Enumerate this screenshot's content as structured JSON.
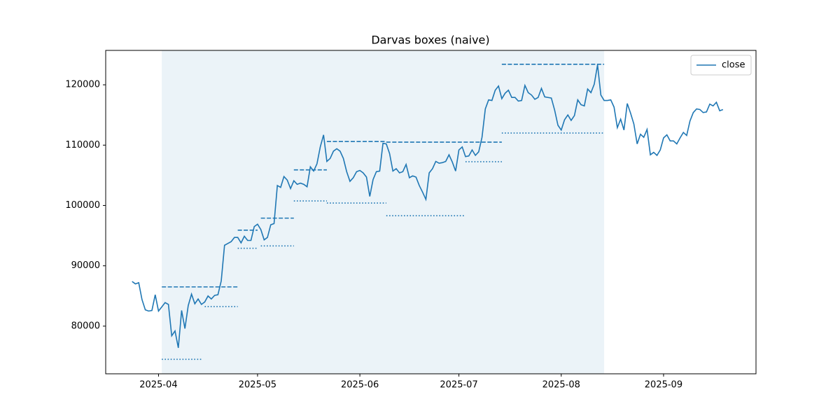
{
  "chart_data": {
    "type": "line",
    "title": "Darvas boxes (naive)",
    "x": [
      "2025-03-24",
      "2025-03-25",
      "2025-03-26",
      "2025-03-27",
      "2025-03-28",
      "2025-03-29",
      "2025-03-30",
      "2025-03-31",
      "2025-04-01",
      "2025-04-02",
      "2025-04-03",
      "2025-04-04",
      "2025-04-05",
      "2025-04-06",
      "2025-04-07",
      "2025-04-08",
      "2025-04-09",
      "2025-04-10",
      "2025-04-11",
      "2025-04-12",
      "2025-04-13",
      "2025-04-14",
      "2025-04-15",
      "2025-04-16",
      "2025-04-17",
      "2025-04-18",
      "2025-04-19",
      "2025-04-20",
      "2025-04-21",
      "2025-04-22",
      "2025-04-23",
      "2025-04-24",
      "2025-04-25",
      "2025-04-26",
      "2025-04-27",
      "2025-04-28",
      "2025-04-29",
      "2025-04-30",
      "2025-05-01",
      "2025-05-02",
      "2025-05-03",
      "2025-05-04",
      "2025-05-05",
      "2025-05-06",
      "2025-05-07",
      "2025-05-08",
      "2025-05-09",
      "2025-05-10",
      "2025-05-11",
      "2025-05-12",
      "2025-05-13",
      "2025-05-14",
      "2025-05-15",
      "2025-05-16",
      "2025-05-17",
      "2025-05-18",
      "2025-05-19",
      "2025-05-20",
      "2025-05-21",
      "2025-05-22",
      "2025-05-23",
      "2025-05-24",
      "2025-05-25",
      "2025-05-26",
      "2025-05-27",
      "2025-05-28",
      "2025-05-29",
      "2025-05-30",
      "2025-05-31",
      "2025-06-01",
      "2025-06-02",
      "2025-06-03",
      "2025-06-04",
      "2025-06-05",
      "2025-06-06",
      "2025-06-07",
      "2025-06-08",
      "2025-06-09",
      "2025-06-10",
      "2025-06-11",
      "2025-06-12",
      "2025-06-13",
      "2025-06-14",
      "2025-06-15",
      "2025-06-16",
      "2025-06-17",
      "2025-06-18",
      "2025-06-19",
      "2025-06-20",
      "2025-06-21",
      "2025-06-22",
      "2025-06-23",
      "2025-06-24",
      "2025-06-25",
      "2025-06-26",
      "2025-06-27",
      "2025-06-28",
      "2025-06-29",
      "2025-06-30",
      "2025-07-01",
      "2025-07-02",
      "2025-07-03",
      "2025-07-04",
      "2025-07-05",
      "2025-07-06",
      "2025-07-07",
      "2025-07-08",
      "2025-07-09",
      "2025-07-10",
      "2025-07-11",
      "2025-07-12",
      "2025-07-13",
      "2025-07-14",
      "2025-07-15",
      "2025-07-16",
      "2025-07-17",
      "2025-07-18",
      "2025-07-19",
      "2025-07-20",
      "2025-07-21",
      "2025-07-22",
      "2025-07-23",
      "2025-07-24",
      "2025-07-25",
      "2025-07-26",
      "2025-07-27",
      "2025-07-28",
      "2025-07-29",
      "2025-07-30",
      "2025-07-31",
      "2025-08-01",
      "2025-08-02",
      "2025-08-03",
      "2025-08-04",
      "2025-08-05",
      "2025-08-06",
      "2025-08-07",
      "2025-08-08",
      "2025-08-09",
      "2025-08-10",
      "2025-08-11",
      "2025-08-12",
      "2025-08-13",
      "2025-08-14",
      "2025-08-15",
      "2025-08-16",
      "2025-08-17",
      "2025-08-18",
      "2025-08-19",
      "2025-08-20",
      "2025-08-21",
      "2025-08-22",
      "2025-08-23",
      "2025-08-24",
      "2025-08-25",
      "2025-08-26",
      "2025-08-27",
      "2025-08-28",
      "2025-08-29",
      "2025-08-30",
      "2025-08-31",
      "2025-09-01",
      "2025-09-02",
      "2025-09-03",
      "2025-09-04",
      "2025-09-05",
      "2025-09-06",
      "2025-09-07",
      "2025-09-08",
      "2025-09-09",
      "2025-09-10",
      "2025-09-11",
      "2025-09-12",
      "2025-09-13",
      "2025-09-14",
      "2025-09-15",
      "2025-09-16",
      "2025-09-17",
      "2025-09-18",
      "2025-09-19"
    ],
    "series": [
      {
        "name": "close",
        "color": "#1f77b4",
        "values": [
          87400,
          87000,
          87200,
          84400,
          82700,
          82500,
          82600,
          85200,
          82500,
          83200,
          83900,
          83600,
          78400,
          79200,
          76400,
          82600,
          79600,
          83400,
          85300,
          83700,
          84500,
          83600,
          84000,
          85000,
          84500,
          85100,
          85200,
          87500,
          93400,
          93700,
          94000,
          94700,
          94700,
          93800,
          94900,
          94200,
          94200,
          96500,
          96900,
          96000,
          94300,
          94700,
          96800,
          97000,
          103300,
          103000,
          104800,
          104200,
          102800,
          104100,
          103500,
          103700,
          103500,
          103100,
          106400,
          105700,
          106900,
          109700,
          111700,
          107300,
          107800,
          109000,
          109400,
          109000,
          107800,
          105600,
          104000,
          104600,
          105600,
          105800,
          105400,
          104700,
          101500,
          104300,
          105600,
          105700,
          110300,
          110200,
          108600,
          105700,
          106100,
          105400,
          105600,
          106800,
          104600,
          104900,
          104700,
          103300,
          102200,
          101000,
          105400,
          106100,
          107300,
          107000,
          107100,
          107300,
          108400,
          107200,
          105700,
          109200,
          109700,
          108100,
          108200,
          109200,
          108300,
          108900,
          111300,
          116000,
          117500,
          117400,
          119100,
          119800,
          117700,
          118600,
          119100,
          117900,
          117900,
          117300,
          117400,
          119900,
          118700,
          118300,
          117600,
          117900,
          119400,
          118000,
          117900,
          117800,
          115800,
          113300,
          112500,
          114200,
          115000,
          114100,
          114900,
          117500,
          116700,
          116500,
          119300,
          118700,
          120100,
          123300,
          118300,
          117400,
          117400,
          117500,
          116300,
          112900,
          114300,
          112500,
          116900,
          115300,
          113500,
          110200,
          111800,
          111300,
          112600,
          108400,
          108800,
          108300,
          109200,
          111200,
          111700,
          110700,
          110700,
          110200,
          111200,
          112100,
          111600,
          114000,
          115400,
          116000,
          115900,
          115400,
          115500,
          116800,
          116500,
          117100,
          115700,
          115900
        ]
      }
    ],
    "boxes": {
      "color": "#1f77b4",
      "tops": [
        {
          "start": "2025-04-02",
          "end": "2025-04-25",
          "value": 86500
        },
        {
          "start": "2025-04-25",
          "end": "2025-05-01",
          "value": 95900
        },
        {
          "start": "2025-05-02",
          "end": "2025-05-12",
          "value": 97900
        },
        {
          "start": "2025-05-12",
          "end": "2025-05-22",
          "value": 105900
        },
        {
          "start": "2025-05-22",
          "end": "2025-06-09",
          "value": 110600
        },
        {
          "start": "2025-06-09",
          "end": "2025-07-14",
          "value": 110500
        },
        {
          "start": "2025-07-14",
          "end": "2025-08-14",
          "value": 123400
        }
      ],
      "bottoms": [
        {
          "start": "2025-04-02",
          "end": "2025-04-14",
          "value": 74500
        },
        {
          "start": "2025-04-15",
          "end": "2025-04-25",
          "value": 83250
        },
        {
          "start": "2025-04-25",
          "end": "2025-05-01",
          "value": 92900
        },
        {
          "start": "2025-05-02",
          "end": "2025-05-12",
          "value": 93300
        },
        {
          "start": "2025-05-12",
          "end": "2025-05-22",
          "value": 100750
        },
        {
          "start": "2025-05-22",
          "end": "2025-06-09",
          "value": 100400
        },
        {
          "start": "2025-06-09",
          "end": "2025-07-03",
          "value": 98300
        },
        {
          "start": "2025-07-03",
          "end": "2025-07-14",
          "value": 107250
        },
        {
          "start": "2025-07-14",
          "end": "2025-08-14",
          "value": 112000
        }
      ]
    },
    "shade": {
      "start": "2025-04-02",
      "end": "2025-08-14",
      "color": "#1f77b4"
    },
    "xlim": [
      "2025-03-16",
      "2025-09-29"
    ],
    "xticks": [
      {
        "value": "2025-04-01",
        "label": "2025-04"
      },
      {
        "value": "2025-05-01",
        "label": "2025-05"
      },
      {
        "value": "2025-06-01",
        "label": "2025-06"
      },
      {
        "value": "2025-07-01",
        "label": "2025-07"
      },
      {
        "value": "2025-08-01",
        "label": "2025-08"
      },
      {
        "value": "2025-09-01",
        "label": "2025-09"
      }
    ],
    "ylim": [
      72100,
      125700
    ],
    "yticks": [
      80000,
      90000,
      100000,
      110000,
      120000
    ],
    "grid": false,
    "legend": "upper right"
  }
}
